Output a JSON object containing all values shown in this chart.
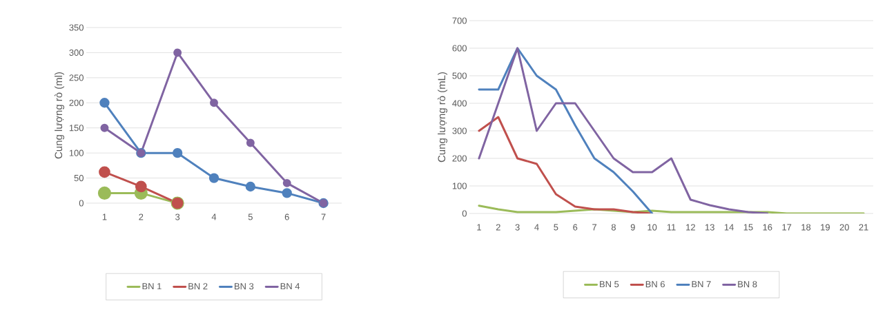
{
  "chart_data": [
    {
      "type": "line",
      "ylabel": "Cung lượng rò (ml)",
      "categories": [
        "1",
        "2",
        "3",
        "4",
        "5",
        "6",
        "7"
      ],
      "ylim": [
        0,
        350
      ],
      "yticks": [
        0,
        50,
        100,
        150,
        200,
        250,
        300,
        350
      ],
      "grid": "y",
      "legend": "bottom",
      "marker": "circle",
      "series": [
        {
          "name": "BN 1",
          "color": "#9bbb59",
          "values": [
            20,
            20,
            0,
            null,
            null,
            null,
            null
          ]
        },
        {
          "name": "BN 2",
          "color": "#c0504d",
          "values": [
            62,
            33,
            0,
            null,
            null,
            null,
            null
          ]
        },
        {
          "name": "BN 3",
          "color": "#4f81bd",
          "values": [
            200,
            100,
            100,
            50,
            33,
            20,
            0
          ]
        },
        {
          "name": "BN 4",
          "color": "#8064a2",
          "values": [
            150,
            100,
            300,
            200,
            120,
            40,
            0
          ]
        }
      ]
    },
    {
      "type": "line",
      "ylabel": "Cung lượng rò (mL)",
      "categories": [
        "1",
        "2",
        "3",
        "4",
        "5",
        "6",
        "7",
        "8",
        "9",
        "10",
        "11",
        "12",
        "13",
        "14",
        "15",
        "16",
        "17",
        "18",
        "19",
        "20",
        "21"
      ],
      "ylim": [
        0,
        700
      ],
      "yticks": [
        0,
        100,
        200,
        300,
        400,
        500,
        600,
        700
      ],
      "grid": "y",
      "legend": "bottom",
      "marker": "none",
      "series": [
        {
          "name": "BN 5",
          "color": "#9bbb59",
          "values": [
            28,
            15,
            5,
            5,
            5,
            10,
            15,
            10,
            5,
            10,
            5,
            5,
            5,
            5,
            5,
            5,
            0,
            0,
            0,
            0,
            0
          ]
        },
        {
          "name": "BN 6",
          "color": "#c0504d",
          "values": [
            300,
            350,
            200,
            180,
            70,
            25,
            15,
            15,
            5,
            0,
            null,
            null,
            null,
            null,
            null,
            null,
            null,
            null,
            null,
            null,
            null
          ]
        },
        {
          "name": "BN 7",
          "color": "#4f81bd",
          "values": [
            450,
            450,
            600,
            500,
            450,
            320,
            200,
            150,
            80,
            0,
            null,
            null,
            null,
            null,
            null,
            null,
            null,
            null,
            null,
            null,
            null
          ]
        },
        {
          "name": "BN 8",
          "color": "#8064a2",
          "values": [
            200,
            400,
            600,
            300,
            400,
            400,
            300,
            200,
            150,
            150,
            200,
            50,
            30,
            15,
            5,
            0,
            null,
            null,
            null,
            null,
            null
          ]
        }
      ]
    }
  ]
}
